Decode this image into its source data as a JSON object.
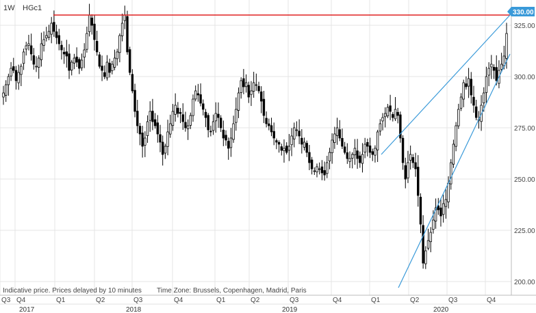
{
  "header": {
    "interval": "1W",
    "symbol": "HGc1"
  },
  "footer": {
    "disclaimer": "Indicative price. Prices delayed by 10 minutes",
    "timezone": "Time Zone: Brussels, Copenhagen, Madrid, Paris"
  },
  "price_tag": "330.00",
  "colors": {
    "candle": "#000000",
    "resistance": "#e02020",
    "channel": "#3a9ad9",
    "tag": "#3a9ad9",
    "grid": "#e4e4e4"
  },
  "chart_data": {
    "type": "candlestick",
    "y_ticks": [
      "200.00",
      "225.00",
      "250.00",
      "275.00",
      "300.00",
      "325.00"
    ],
    "ylim": [
      195,
      333
    ],
    "quarters": [
      "Q3",
      "Q4",
      "Q1",
      "Q2",
      "Q3",
      "Q4",
      "Q1",
      "Q2",
      "Q3",
      "Q4",
      "Q1",
      "Q2",
      "Q3",
      "Q4"
    ],
    "years": [
      "2017",
      "2018",
      "2019",
      "2020"
    ],
    "horizontal_line": 330,
    "channel": {
      "upper": [
        {
          "x": "2020-01-24",
          "y": 262
        },
        {
          "x": "2020-11-20",
          "y": 330
        }
      ],
      "lower": [
        {
          "x": "2020-03-20",
          "y": 197
        },
        {
          "x": "2020-12-18",
          "y": 311
        }
      ]
    },
    "closes_weekly_approx": [
      292,
      296,
      300,
      304,
      303,
      298,
      302,
      305,
      312,
      315,
      316,
      311,
      306,
      305,
      309,
      316,
      318,
      320,
      322,
      326,
      322,
      319,
      316,
      313,
      311,
      310,
      303,
      307,
      309,
      307,
      304,
      308,
      313,
      321,
      330,
      325,
      318,
      312,
      305,
      303,
      300,
      307,
      302,
      306,
      309,
      312,
      320,
      326,
      330,
      312,
      302,
      293,
      283,
      276,
      272,
      266,
      270,
      278,
      283,
      278,
      276,
      272,
      268,
      262,
      266,
      273,
      277,
      283,
      286,
      282,
      282,
      278,
      275,
      276,
      281,
      289,
      293,
      291,
      287,
      284,
      280,
      274,
      273,
      278,
      282,
      280,
      275,
      270,
      269,
      265,
      270,
      277,
      284,
      292,
      298,
      295,
      297,
      290,
      293,
      297,
      296,
      293,
      288,
      281,
      277,
      276,
      273,
      270,
      268,
      267,
      264,
      265,
      263,
      266,
      271,
      275,
      274,
      271,
      267,
      268,
      263,
      258,
      255,
      254,
      256,
      255,
      253,
      252,
      258,
      263,
      269,
      272,
      275,
      270,
      266,
      263,
      260,
      260,
      262,
      265,
      260,
      258,
      262,
      267,
      266,
      263,
      262,
      265,
      273,
      277,
      280,
      282,
      285,
      283,
      280,
      284,
      281,
      270,
      258,
      250,
      258,
      262,
      258,
      255,
      242,
      228,
      209,
      215,
      220,
      224,
      230,
      236,
      235,
      232,
      238,
      240,
      248,
      258,
      267,
      276,
      284,
      290,
      297,
      295,
      299,
      291,
      286,
      280,
      279,
      286,
      292,
      300,
      304,
      306,
      303,
      298,
      303,
      306,
      310,
      321
    ]
  }
}
